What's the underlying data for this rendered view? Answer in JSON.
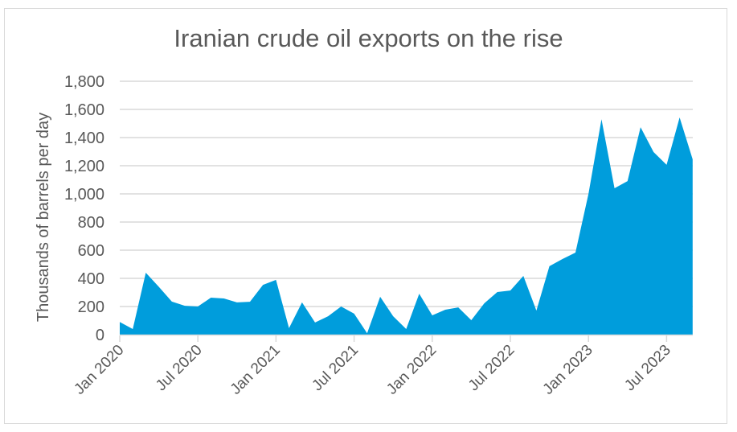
{
  "chart_data": {
    "type": "area",
    "title": "Iranian crude oil exports on the rise",
    "xlabel": "",
    "ylabel": "Thousands of barrels per day",
    "ylim": [
      0,
      1800
    ],
    "yticks": [
      0,
      200,
      400,
      600,
      800,
      1000,
      1200,
      1400,
      1600,
      1800
    ],
    "ytick_labels": [
      "0",
      "200",
      "400",
      "600",
      "800",
      "1,000",
      "1,200",
      "1,400",
      "1,600",
      "1,800"
    ],
    "xtick_labels": [
      "Jan 2020",
      "Jul 2020",
      "Jan 2021",
      "Jul 2021",
      "Jan 2022",
      "Jul 2022",
      "Jan 2023",
      "Jul 2023"
    ],
    "grid": true,
    "legend": null,
    "color": "#009DDC",
    "x": [
      "Jan 2020",
      "Feb 2020",
      "Mar 2020",
      "Apr 2020",
      "May 2020",
      "Jun 2020",
      "Jul 2020",
      "Aug 2020",
      "Sep 2020",
      "Oct 2020",
      "Nov 2020",
      "Dec 2020",
      "Jan 2021",
      "Feb 2021",
      "Mar 2021",
      "Apr 2021",
      "May 2021",
      "Jun 2021",
      "Jul 2021",
      "Aug 2021",
      "Sep 2021",
      "Oct 2021",
      "Nov 2021",
      "Dec 2021",
      "Jan 2022",
      "Feb 2022",
      "Mar 2022",
      "Apr 2022",
      "May 2022",
      "Jun 2022",
      "Jul 2022",
      "Aug 2022",
      "Sep 2022",
      "Oct 2022",
      "Nov 2022",
      "Dec 2022",
      "Jan 2023",
      "Feb 2023",
      "Mar 2023",
      "Apr 2023",
      "May 2023",
      "Jun 2023",
      "Jul 2023",
      "Aug 2023",
      "Sep 2023"
    ],
    "values": [
      90,
      40,
      440,
      340,
      235,
      205,
      200,
      263,
      257,
      229,
      234,
      354,
      389,
      46,
      229,
      86,
      131,
      200,
      149,
      10,
      269,
      131,
      40,
      291,
      137,
      177,
      194,
      103,
      223,
      303,
      314,
      417,
      171,
      486,
      537,
      583,
      1000,
      1530,
      1040,
      1091,
      1474,
      1297,
      1206,
      1543,
      1246
    ]
  }
}
